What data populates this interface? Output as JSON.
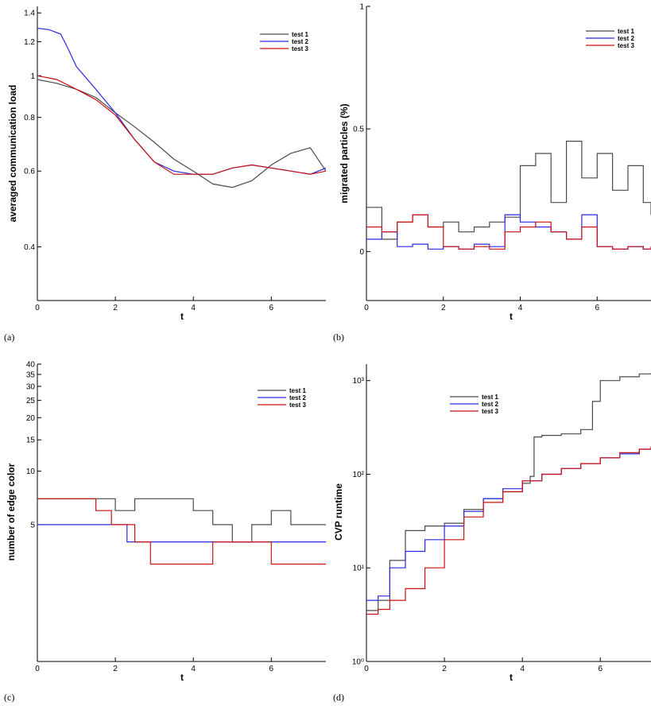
{
  "colors": {
    "test 1": "#4a4a4a",
    "test 2": "#2a2ae6",
    "test 3": "#cc1111"
  },
  "chart_data": [
    {
      "type": "line",
      "panel_label": "(a)",
      "xlabel": "t",
      "ylabel": "averaged communication load",
      "xlim": [
        0,
        7.4
      ],
      "ylim": [
        0.3,
        1.45
      ],
      "y_scale": "log",
      "xticks": [
        0,
        2,
        4,
        6
      ],
      "yticks": [
        0.4,
        0.6,
        0.8,
        1,
        1.2,
        1.4
      ],
      "ytick_labels": [
        "0.4",
        "0.6",
        "0.8",
        "1",
        "1.2",
        "1.4"
      ],
      "grid": false,
      "legend": "top-right",
      "series": [
        {
          "name": "test 1",
          "x": [
            0,
            0.5,
            1,
            1.5,
            2,
            2.5,
            3,
            3.5,
            4,
            4.5,
            5,
            5.5,
            6,
            6.5,
            7,
            7.4
          ],
          "values": [
            0.98,
            0.96,
            0.93,
            0.89,
            0.82,
            0.76,
            0.7,
            0.64,
            0.6,
            0.56,
            0.55,
            0.57,
            0.62,
            0.66,
            0.68,
            0.6
          ]
        },
        {
          "name": "test 2",
          "x": [
            0,
            0.3,
            0.6,
            0.8,
            1,
            1.5,
            2,
            2.5,
            3,
            3.5,
            4,
            4.5,
            5,
            5.5,
            6,
            6.5,
            7,
            7.4
          ],
          "values": [
            1.29,
            1.28,
            1.25,
            1.15,
            1.05,
            0.93,
            0.82,
            0.71,
            0.63,
            0.6,
            0.59,
            0.59,
            0.61,
            0.62,
            0.61,
            0.6,
            0.59,
            0.61
          ]
        },
        {
          "name": "test 3",
          "x": [
            0,
            0.5,
            1,
            1.5,
            2,
            2.5,
            3,
            3.5,
            4,
            4.5,
            5,
            5.5,
            6,
            6.5,
            7,
            7.4
          ],
          "values": [
            1.0,
            0.98,
            0.93,
            0.88,
            0.81,
            0.71,
            0.63,
            0.59,
            0.59,
            0.59,
            0.61,
            0.62,
            0.61,
            0.6,
            0.59,
            0.6
          ]
        }
      ]
    },
    {
      "type": "line",
      "panel_label": "(b)",
      "xlabel": "t",
      "ylabel": "migrated particles (%)",
      "xlim": [
        0,
        7.4
      ],
      "ylim": [
        -0.2,
        1
      ],
      "y_scale": "linear",
      "xticks": [
        0,
        2,
        4,
        6
      ],
      "yticks": [
        0,
        0.5,
        1
      ],
      "ytick_labels": [
        "0",
        "0.5",
        "1"
      ],
      "grid": false,
      "legend": "top-right",
      "series": [
        {
          "name": "test 1",
          "x": [
            0,
            0.4,
            0.8,
            1.2,
            1.6,
            2.0,
            2.4,
            2.8,
            3.2,
            3.6,
            4.0,
            4.4,
            4.8,
            5.2,
            5.6,
            6.0,
            6.4,
            6.8,
            7.2,
            7.4
          ],
          "values": [
            0.18,
            0.05,
            0.12,
            0.15,
            0.1,
            0.12,
            0.08,
            0.1,
            0.12,
            0.14,
            0.35,
            0.4,
            0.2,
            0.45,
            0.3,
            0.4,
            0.25,
            0.35,
            0.2,
            0.15
          ]
        },
        {
          "name": "test 2",
          "x": [
            0,
            0.4,
            0.8,
            1.2,
            1.6,
            2.0,
            2.4,
            2.8,
            3.2,
            3.6,
            4.0,
            4.4,
            4.8,
            5.2,
            5.6,
            6.0,
            6.4,
            6.8,
            7.2,
            7.4
          ],
          "values": [
            0.05,
            0.08,
            0.02,
            0.03,
            0.01,
            0.02,
            0.01,
            0.03,
            0.02,
            0.15,
            0.12,
            0.1,
            0.08,
            0.05,
            0.15,
            0.02,
            0.01,
            0.02,
            0.01,
            0.02
          ]
        },
        {
          "name": "test 3",
          "x": [
            0,
            0.4,
            0.8,
            1.2,
            1.6,
            2.0,
            2.4,
            2.8,
            3.2,
            3.6,
            4.0,
            4.4,
            4.8,
            5.2,
            5.6,
            6.0,
            6.4,
            6.8,
            7.2,
            7.4
          ],
          "values": [
            0.1,
            0.08,
            0.12,
            0.15,
            0.1,
            0.02,
            0.01,
            0.02,
            0.01,
            0.08,
            0.1,
            0.12,
            0.08,
            0.05,
            0.1,
            0.02,
            0.01,
            0.02,
            0.01,
            0.02
          ]
        }
      ]
    },
    {
      "type": "line",
      "panel_label": "(c)",
      "xlabel": "t",
      "ylabel": "number of edge color",
      "xlim": [
        0,
        7.4
      ],
      "ylim": [
        0.85,
        40
      ],
      "y_scale": "log",
      "xticks": [
        0,
        2,
        4,
        6
      ],
      "yticks": [
        5,
        10,
        15,
        20,
        25,
        30,
        35,
        40
      ],
      "ytick_labels": [
        "5",
        "10",
        "15",
        "20",
        "25",
        "30",
        "35",
        "40"
      ],
      "grid": false,
      "legend": "top-right",
      "series": [
        {
          "name": "test 1",
          "x": [
            0,
            0.5,
            1,
            1.5,
            2,
            2.5,
            3,
            3.5,
            4,
            4.5,
            5,
            5.5,
            6,
            6.5,
            7,
            7.4
          ],
          "values": [
            7,
            7,
            7,
            7,
            6,
            7,
            7,
            7,
            6,
            5,
            4,
            5,
            6,
            5,
            5,
            5
          ]
        },
        {
          "name": "test 2",
          "x": [
            0,
            0.5,
            1,
            1.5,
            2,
            2.3,
            2.5,
            3,
            3.5,
            4,
            4.5,
            5,
            5.5,
            6,
            6.5,
            7,
            7.4
          ],
          "values": [
            5,
            5,
            5,
            5,
            5,
            4,
            4,
            4,
            4,
            4,
            4,
            4,
            4,
            4,
            4,
            4,
            4
          ]
        },
        {
          "name": "test 3",
          "x": [
            0,
            0.5,
            1,
            1.5,
            1.9,
            2.5,
            2.9,
            3.5,
            4,
            4.5,
            5,
            5.5,
            6,
            6.5,
            7,
            7.4
          ],
          "values": [
            7,
            7,
            7,
            6,
            5,
            4,
            3,
            3,
            3,
            4,
            4,
            4,
            3,
            3,
            3,
            3
          ]
        }
      ]
    },
    {
      "type": "line",
      "panel_label": "(d)",
      "xlabel": "t",
      "ylabel": "CVP runtime",
      "xlim": [
        0,
        7.3
      ],
      "ylim": [
        1,
        1500
      ],
      "y_scale": "log",
      "xticks": [
        0,
        2,
        4,
        6
      ],
      "yticks": [
        1,
        10,
        100,
        1000
      ],
      "ytick_labels": [
        "10⁰",
        "10¹",
        "10²",
        "10³"
      ],
      "grid": false,
      "legend": "upper-left",
      "series": [
        {
          "name": "test 1",
          "x": [
            0,
            0.3,
            0.6,
            1,
            1.5,
            2,
            2.5,
            3,
            3.5,
            4,
            4.2,
            4.3,
            4.5,
            5,
            5.5,
            5.8,
            6,
            6.5,
            7,
            7.3
          ],
          "values": [
            3.5,
            4.5,
            12,
            25,
            28,
            30,
            42,
            55,
            65,
            80,
            95,
            250,
            260,
            270,
            300,
            600,
            1000,
            1100,
            1180,
            1200
          ]
        },
        {
          "name": "test 2",
          "x": [
            0,
            0.3,
            0.6,
            1,
            1.5,
            2,
            2.5,
            3,
            3.5,
            4,
            4.5,
            5,
            5.5,
            6,
            6.5,
            7,
            7.3
          ],
          "values": [
            4.5,
            5,
            10,
            15,
            20,
            28,
            40,
            55,
            70,
            85,
            100,
            115,
            130,
            150,
            165,
            185,
            195
          ]
        },
        {
          "name": "test 3",
          "x": [
            0,
            0.3,
            0.6,
            1,
            1.5,
            2,
            2.5,
            3,
            3.5,
            4,
            4.5,
            5,
            5.5,
            6,
            6.5,
            7,
            7.3
          ],
          "values": [
            3.2,
            3.6,
            4.5,
            6,
            10,
            20,
            35,
            50,
            65,
            85,
            100,
            115,
            130,
            150,
            170,
            185,
            198
          ]
        }
      ]
    }
  ]
}
